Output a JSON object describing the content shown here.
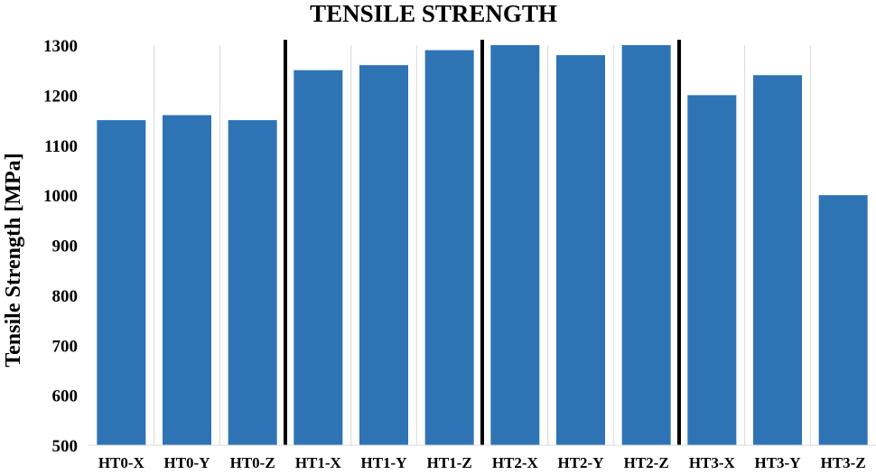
{
  "chart_data": {
    "type": "bar",
    "title": "TENSILE STRENGTH",
    "xlabel": "",
    "ylabel": "Tensile Strength [MPa]",
    "categories": [
      "HT0-X",
      "HT0-Y",
      "HT0-Z",
      "HT1-X",
      "HT1-Y",
      "HT1-Z",
      "HT2-X",
      "HT2-Y",
      "HT2-Z",
      "HT3-X",
      "HT3-Y",
      "HT3-Z"
    ],
    "values": [
      1150,
      1160,
      1150,
      1250,
      1260,
      1290,
      1300,
      1280,
      1300,
      1200,
      1240,
      1000
    ],
    "ylim": [
      500,
      1300
    ],
    "yticks": [
      "500",
      "600",
      "700",
      "800",
      "900",
      "1000",
      "1100",
      "1200",
      "1300"
    ],
    "grid": "vertical",
    "group_separators_after": [
      3,
      6,
      9
    ],
    "colors": {
      "bar": "#2E74B5",
      "grid": "#D9D9D9",
      "separator": "#000000"
    }
  }
}
